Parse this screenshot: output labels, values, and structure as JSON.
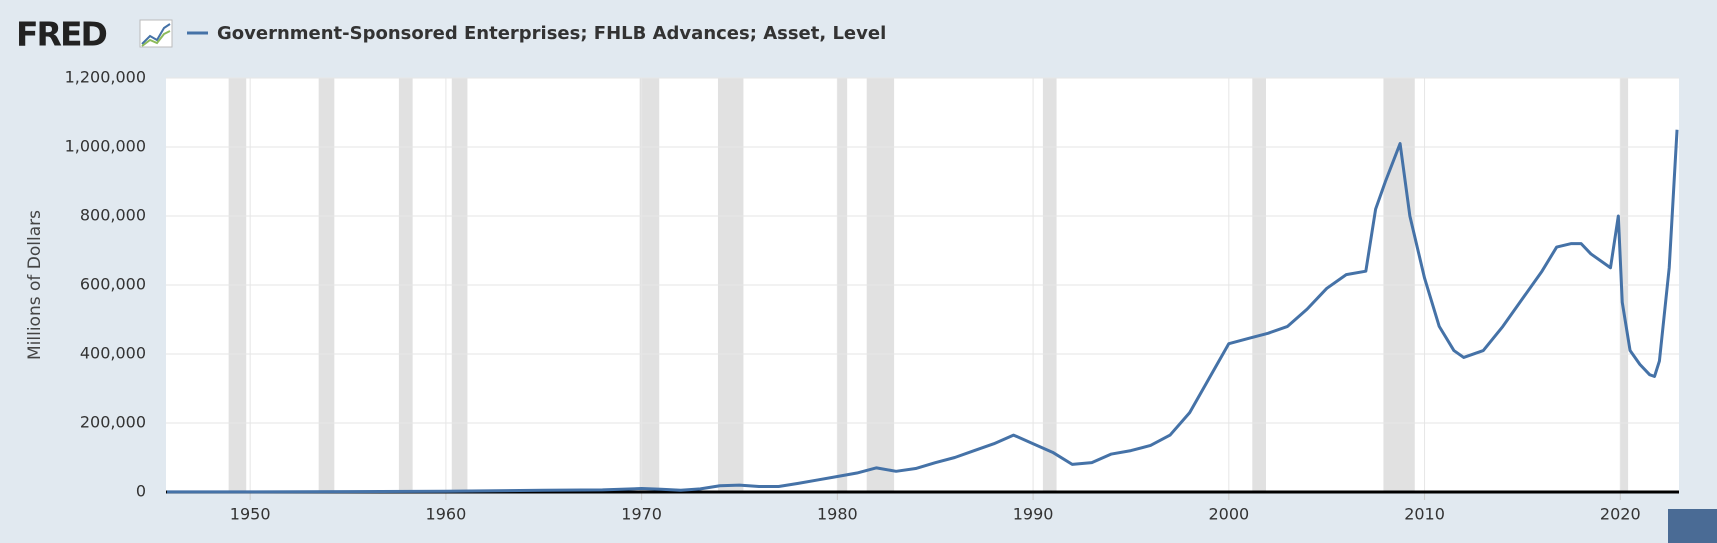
{
  "logo": "FRED",
  "chart_data": {
    "type": "line",
    "y_label": "Millions of Dollars",
    "series": [
      {
        "name": "Government-Sponsored Enterprises; FHLB Advances; Asset, Level",
        "color": "#4572a7",
        "x": [
          1945.75,
          1950,
          1955,
          1960,
          1965,
          1968,
          1970,
          1971,
          1972,
          1973,
          1974,
          1975,
          1976,
          1977,
          1978,
          1979,
          1980,
          1981,
          1982,
          1983,
          1984,
          1985,
          1986,
          1987,
          1988,
          1989,
          1990,
          1991,
          1992,
          1993,
          1994,
          1995,
          1996,
          1997,
          1998,
          1999,
          2000,
          2001,
          2002,
          2003,
          2004,
          2005,
          2006,
          2007,
          2007.5,
          2008,
          2008.75,
          2009.25,
          2010,
          2010.75,
          2011.5,
          2012,
          2013,
          2014,
          2015,
          2016,
          2016.75,
          2017.5,
          2018,
          2018.5,
          2019.5,
          2019.9,
          2020.1,
          2020.5,
          2021,
          2021.5,
          2021.75,
          2022,
          2022.5,
          2022.9
        ],
        "values": [
          300,
          500,
          1000,
          2000,
          5000,
          6000,
          10000,
          8000,
          5000,
          9000,
          18000,
          20000,
          16000,
          16000,
          25000,
          35000,
          45000,
          55000,
          70000,
          60000,
          68000,
          85000,
          100000,
          120000,
          140000,
          165000,
          140000,
          115000,
          80000,
          85000,
          110000,
          120000,
          135000,
          165000,
          230000,
          330000,
          430000,
          445000,
          460000,
          480000,
          530000,
          590000,
          630000,
          640000,
          820000,
          900000,
          1010000,
          800000,
          620000,
          480000,
          410000,
          390000,
          410000,
          480000,
          560000,
          640000,
          710000,
          720000,
          720000,
          690000,
          650000,
          800000,
          550000,
          410000,
          370000,
          340000,
          335000,
          380000,
          650000,
          1050000
        ]
      }
    ],
    "recessions": [
      [
        1948.9,
        1949.8
      ],
      [
        1953.5,
        1954.3
      ],
      [
        1957.6,
        1958.3
      ],
      [
        1960.3,
        1961.1
      ],
      [
        1969.9,
        1970.9
      ],
      [
        1973.9,
        1975.2
      ],
      [
        1980.0,
        1980.5
      ],
      [
        1981.5,
        1982.9
      ],
      [
        1990.5,
        1991.2
      ],
      [
        2001.2,
        2001.9
      ],
      [
        2007.9,
        2009.5
      ],
      [
        2020.0,
        2020.4
      ]
    ],
    "recession_color": "#e1e1e1",
    "xlim": [
      1945.7,
      2023.0
    ],
    "ylim": [
      0,
      1200000
    ],
    "xticks": [
      1950,
      1960,
      1970,
      1980,
      1990,
      2000,
      2010,
      2020
    ],
    "yticks": [
      0,
      {
        "value": 200000,
        "label": "200,000"
      },
      {
        "value": 400000,
        "label": "400,000"
      },
      {
        "value": 600000,
        "label": "600,000"
      },
      {
        "value": 800000,
        "label": "800,000"
      },
      {
        "value": 1000000,
        "label": "1,000,000"
      },
      {
        "value": 1200000,
        "label": "1,200,000"
      }
    ],
    "grid": true
  }
}
